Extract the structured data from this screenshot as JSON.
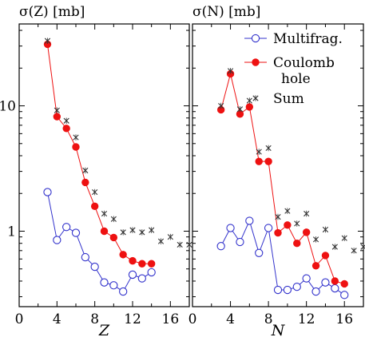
{
  "chart_data": [
    {
      "type": "line",
      "ylabel": "σ(Z) [mb]",
      "xlabel": "Z",
      "xlim": [
        0,
        18
      ],
      "ylim": [
        0.25,
        45
      ],
      "yscale": "log",
      "x_ticks": [
        "0",
        "4",
        "8",
        "12",
        "16"
      ],
      "y_ticks": [
        "1",
        "10"
      ],
      "series": [
        {
          "name": "Multifrag.",
          "marker": "open-circle",
          "color": "#3333cc",
          "points": [
            [
              3,
              2.05
            ],
            [
              4,
              0.85
            ],
            [
              5,
              1.08
            ],
            [
              6,
              0.97
            ],
            [
              7,
              0.62
            ],
            [
              8,
              0.52
            ],
            [
              9,
              0.39
            ],
            [
              10,
              0.37
            ],
            [
              11,
              0.33
            ],
            [
              12,
              0.45
            ],
            [
              13,
              0.42
            ],
            [
              14,
              0.47
            ]
          ]
        },
        {
          "name": "Coulomb hole",
          "marker": "filled-circle",
          "color": "#ee1111",
          "points": [
            [
              3,
              31
            ],
            [
              4,
              8.2
            ],
            [
              5,
              6.6
            ],
            [
              6,
              4.7
            ],
            [
              7,
              2.45
            ],
            [
              8,
              1.58
            ],
            [
              9,
              1.0
            ],
            [
              10,
              0.89
            ],
            [
              11,
              0.65
            ],
            [
              12,
              0.58
            ],
            [
              13,
              0.55
            ],
            [
              14,
              0.55
            ]
          ]
        },
        {
          "name": "Sum",
          "marker": "cross",
          "color": "#333333",
          "points": [
            [
              3,
              33
            ],
            [
              4,
              9.2
            ],
            [
              5,
              7.6
            ],
            [
              6,
              5.6
            ],
            [
              7,
              3.05
            ],
            [
              8,
              2.05
            ],
            [
              9,
              1.38
            ],
            [
              10,
              1.25
            ],
            [
              11,
              0.98
            ],
            [
              12,
              1.02
            ],
            [
              13,
              0.98
            ],
            [
              14,
              1.02
            ],
            [
              15,
              0.83
            ],
            [
              16,
              0.9
            ],
            [
              17,
              0.78
            ],
            [
              18,
              0.78
            ]
          ]
        }
      ]
    },
    {
      "type": "line",
      "ylabel": "σ(N) [mb]",
      "xlabel": "N",
      "xlim": [
        0,
        18
      ],
      "ylim": [
        0.25,
        45
      ],
      "yscale": "log",
      "x_ticks": [
        "0",
        "4",
        "8",
        "12",
        "16"
      ],
      "legend": {
        "position": "top-right",
        "entries": [
          "Multifrag.",
          "Coulomb hole",
          "Sum"
        ]
      },
      "series": [
        {
          "name": "Multifrag.",
          "marker": "open-circle",
          "color": "#3333cc",
          "points": [
            [
              3,
              0.76
            ],
            [
              4,
              1.06
            ],
            [
              5,
              0.82
            ],
            [
              6,
              1.21
            ],
            [
              7,
              0.67
            ],
            [
              8,
              1.06
            ],
            [
              9,
              0.34
            ],
            [
              10,
              0.34
            ],
            [
              11,
              0.36
            ],
            [
              12,
              0.42
            ],
            [
              13,
              0.33
            ],
            [
              14,
              0.39
            ],
            [
              15,
              0.35
            ],
            [
              16,
              0.31
            ]
          ]
        },
        {
          "name": "Coulomb hole",
          "marker": "filled-circle",
          "color": "#ee1111",
          "points": [
            [
              3,
              9.3
            ],
            [
              4,
              18.0
            ],
            [
              5,
              8.6
            ],
            [
              6,
              9.8
            ],
            [
              7,
              3.6
            ],
            [
              8,
              3.6
            ],
            [
              9,
              0.97
            ],
            [
              10,
              1.12
            ],
            [
              11,
              0.8
            ],
            [
              12,
              0.98
            ],
            [
              13,
              0.53
            ],
            [
              14,
              0.64
            ],
            [
              15,
              0.4
            ],
            [
              16,
              0.38
            ]
          ]
        },
        {
          "name": "Sum",
          "marker": "cross",
          "color": "#333333",
          "points": [
            [
              3,
              10.0
            ],
            [
              4,
              19.0
            ],
            [
              5,
              9.4
            ],
            [
              6,
              11.0
            ],
            [
              7,
              4.3
            ],
            [
              8,
              4.6
            ],
            [
              9,
              1.3
            ],
            [
              10,
              1.45
            ],
            [
              11,
              1.15
            ],
            [
              12,
              1.38
            ],
            [
              13,
              0.86
            ],
            [
              14,
              1.03
            ],
            [
              15,
              0.75
            ],
            [
              16,
              0.88
            ],
            [
              17,
              0.7
            ],
            [
              18,
              0.75
            ]
          ]
        }
      ]
    }
  ]
}
